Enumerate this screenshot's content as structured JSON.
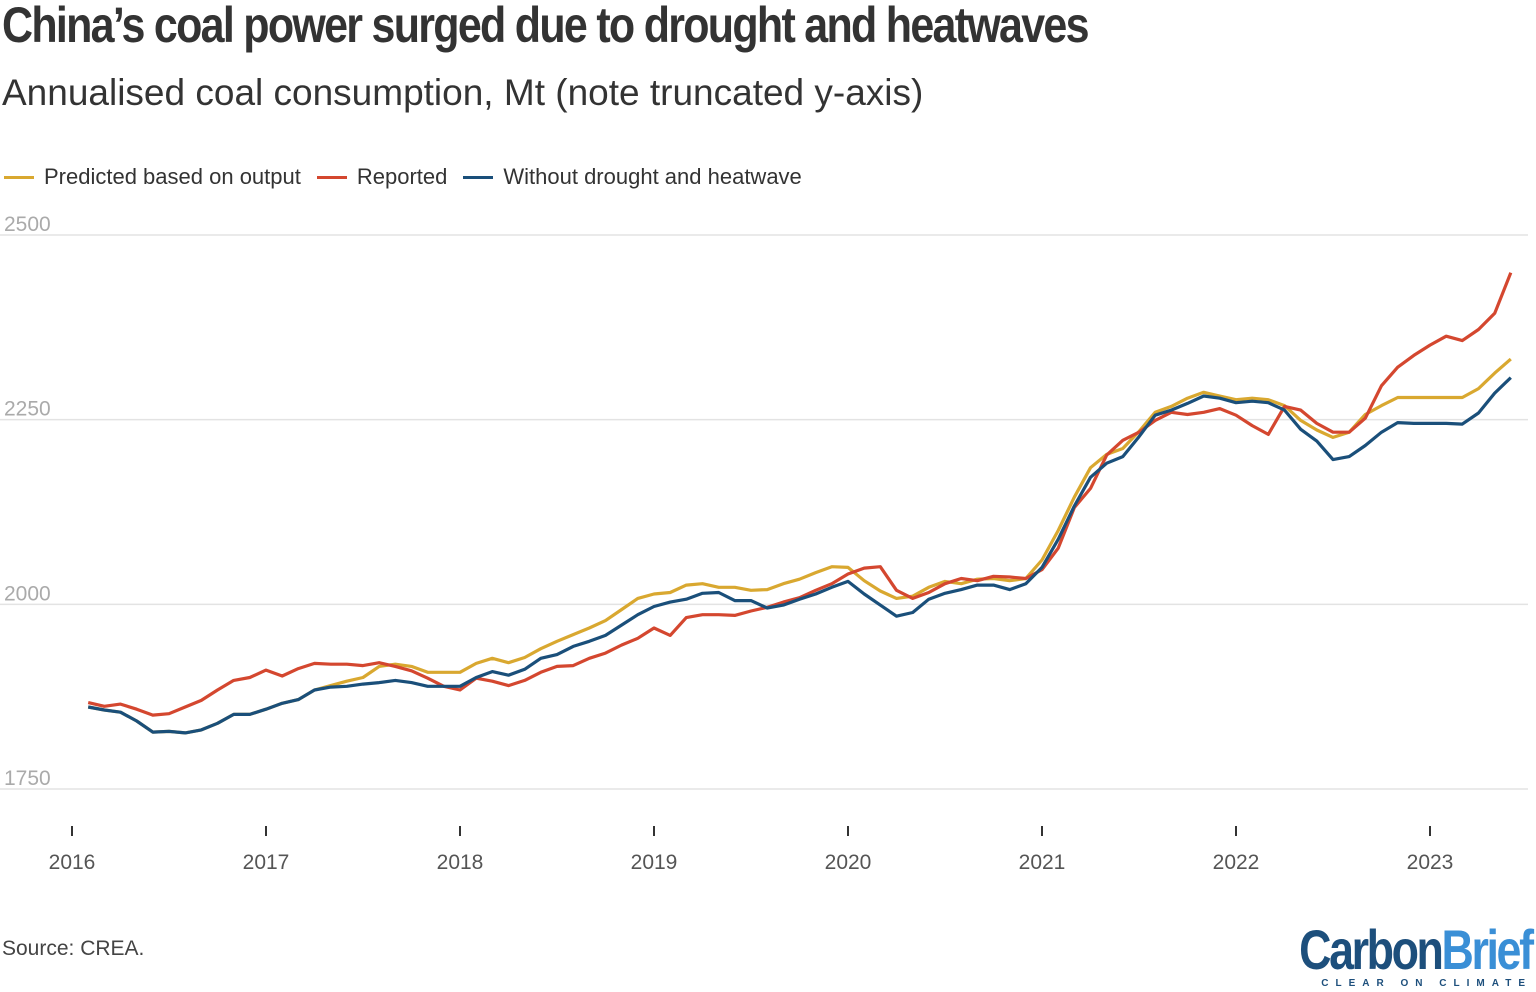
{
  "chart_data": {
    "type": "line",
    "title": "China’s coal power surged due to drought and heatwaves",
    "subtitle": "Annualised coal consumption, Mt (note truncated y-axis)",
    "source": "Source: CREA.",
    "ylim": [
      1750,
      2500
    ],
    "yticks": [
      1750,
      2000,
      2250,
      2500
    ],
    "xticks": [
      "2016",
      "2017",
      "2018",
      "2019",
      "2020",
      "2021",
      "2022",
      "2023"
    ],
    "grid": true,
    "legend_position": "top-left",
    "x": [
      "2016-02",
      "2016-03",
      "2016-04",
      "2016-05",
      "2016-06",
      "2016-07",
      "2016-08",
      "2016-09",
      "2016-10",
      "2016-11",
      "2016-12",
      "2017-01",
      "2017-02",
      "2017-03",
      "2017-04",
      "2017-05",
      "2017-06",
      "2017-07",
      "2017-08",
      "2017-09",
      "2017-10",
      "2017-11",
      "2017-12",
      "2018-01",
      "2018-02",
      "2018-03",
      "2018-04",
      "2018-05",
      "2018-06",
      "2018-07",
      "2018-08",
      "2018-09",
      "2018-10",
      "2018-11",
      "2018-12",
      "2019-01",
      "2019-02",
      "2019-03",
      "2019-04",
      "2019-05",
      "2019-06",
      "2019-07",
      "2019-08",
      "2019-09",
      "2019-10",
      "2019-11",
      "2019-12",
      "2020-01",
      "2020-02",
      "2020-03",
      "2020-04",
      "2020-05",
      "2020-06",
      "2020-07",
      "2020-08",
      "2020-09",
      "2020-10",
      "2020-11",
      "2020-12",
      "2021-01",
      "2021-02",
      "2021-03",
      "2021-04",
      "2021-05",
      "2021-06",
      "2021-07",
      "2021-08",
      "2021-09",
      "2021-10",
      "2021-11",
      "2021-12",
      "2022-01",
      "2022-02",
      "2022-03",
      "2022-04",
      "2022-05",
      "2022-06",
      "2022-07",
      "2022-08",
      "2022-09",
      "2022-10",
      "2022-11",
      "2022-12",
      "2023-01",
      "2023-02",
      "2023-03",
      "2023-04",
      "2023-05",
      "2023-06"
    ],
    "series": [
      {
        "name": "Predicted based on output",
        "color": "#d9a830",
        "values": [
          1861,
          1857,
          1854,
          1842,
          1827,
          1828,
          1826,
          1830,
          1839,
          1851,
          1851,
          1858,
          1866,
          1871,
          1884,
          1890,
          1896,
          1901,
          1916,
          1919,
          1916,
          1908,
          1908,
          1908,
          1920,
          1927,
          1921,
          1928,
          1940,
          1950,
          1959,
          1968,
          1978,
          1993,
          2008,
          2014,
          2016,
          2026,
          2028,
          2023,
          2023,
          2019,
          2020,
          2028,
          2034,
          2043,
          2051,
          2050,
          2032,
          2018,
          2008,
          2011,
          2023,
          2031,
          2028,
          2034,
          2035,
          2032,
          2035,
          2060,
          2100,
          2145,
          2185,
          2203,
          2211,
          2234,
          2260,
          2268,
          2279,
          2287,
          2282,
          2277,
          2279,
          2277,
          2269,
          2249,
          2236,
          2226,
          2233,
          2257,
          2269,
          2280,
          2280,
          2280,
          2280,
          2280,
          2292,
          2313,
          2332
        ]
      },
      {
        "name": "Reported",
        "color": "#d4472f",
        "values": [
          1867,
          1862,
          1865,
          1858,
          1850,
          1852,
          1861,
          1870,
          1884,
          1897,
          1901,
          1911,
          1903,
          1913,
          1920,
          1919,
          1919,
          1917,
          1921,
          1916,
          1910,
          1900,
          1889,
          1884,
          1900,
          1896,
          1890,
          1897,
          1908,
          1916,
          1917,
          1927,
          1934,
          1945,
          1954,
          1968,
          1958,
          1982,
          1986,
          1986,
          1985,
          1991,
          1996,
          2003,
          2009,
          2019,
          2028,
          2041,
          2049,
          2051,
          2019,
          2008,
          2016,
          2028,
          2035,
          2032,
          2038,
          2037,
          2035,
          2047,
          2076,
          2131,
          2157,
          2202,
          2222,
          2233,
          2249,
          2260,
          2257,
          2260,
          2265,
          2256,
          2242,
          2230,
          2268,
          2263,
          2245,
          2233,
          2233,
          2252,
          2296,
          2321,
          2337,
          2351,
          2363,
          2357,
          2372,
          2394,
          2449
        ]
      },
      {
        "name": "Without drought and heatwave",
        "color": "#1a4f7a",
        "values": [
          1861,
          1857,
          1854,
          1842,
          1827,
          1828,
          1826,
          1830,
          1839,
          1851,
          1851,
          1858,
          1866,
          1871,
          1884,
          1888,
          1889,
          1892,
          1894,
          1897,
          1894,
          1889,
          1889,
          1889,
          1901,
          1909,
          1904,
          1912,
          1927,
          1932,
          1943,
          1950,
          1958,
          1972,
          1986,
          1997,
          2003,
          2007,
          2015,
          2016,
          2005,
          2005,
          1995,
          1999,
          2007,
          2014,
          2023,
          2031,
          2014,
          1999,
          1984,
          1989,
          2007,
          2015,
          2020,
          2026,
          2026,
          2020,
          2028,
          2050,
          2088,
          2133,
          2172,
          2191,
          2200,
          2227,
          2256,
          2263,
          2272,
          2282,
          2279,
          2273,
          2275,
          2273,
          2263,
          2237,
          2221,
          2196,
          2200,
          2215,
          2233,
          2246,
          2245,
          2245,
          2245,
          2244,
          2259,
          2286,
          2307
        ]
      }
    ]
  },
  "logo": {
    "name_part1": "Carbon",
    "name_part2": "Brief",
    "tagline": "CLEAR ON CLIMATE",
    "color1": "#1d4f7c",
    "color2": "#3a8fd6"
  }
}
